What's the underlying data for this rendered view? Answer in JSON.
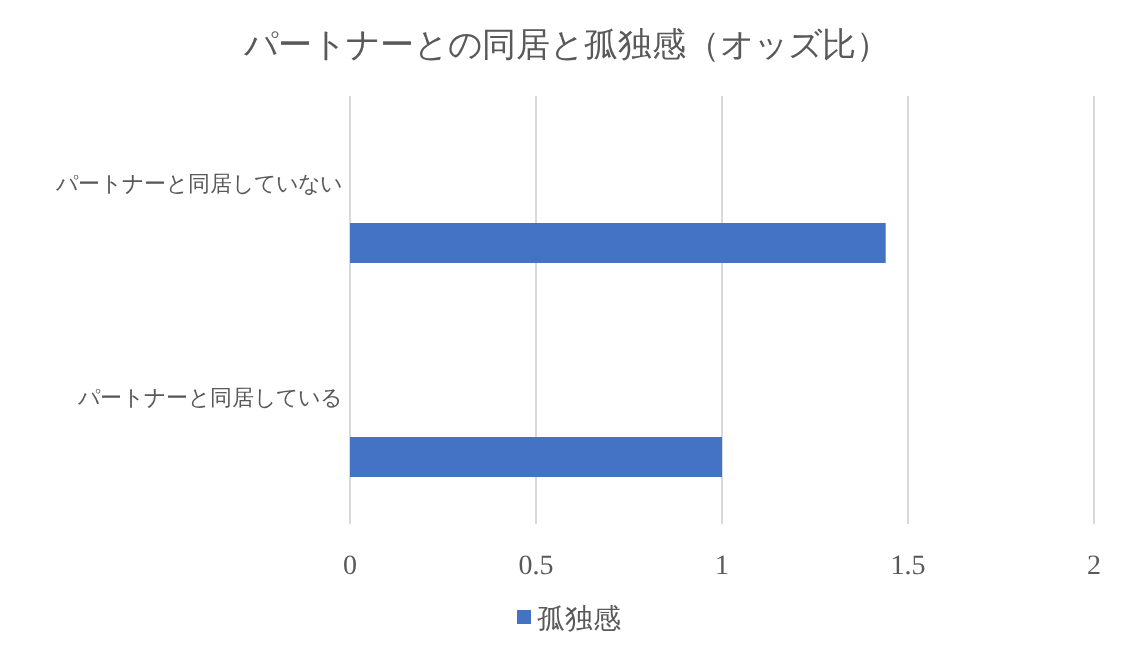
{
  "chart_data": {
    "type": "bar",
    "orientation": "horizontal",
    "title": "パートナーとの同居と孤独感（オッズ比）",
    "categories": [
      "パートナーと同居していない",
      "パートナーと同居している"
    ],
    "series": [
      {
        "name": "孤独感",
        "color": "#4472c4",
        "values": [
          1.44,
          1.0
        ]
      }
    ],
    "xlim": [
      0,
      2
    ],
    "xticks": [
      0,
      0.5,
      1,
      1.5,
      2
    ],
    "grid": "x",
    "legend": "bottom"
  }
}
